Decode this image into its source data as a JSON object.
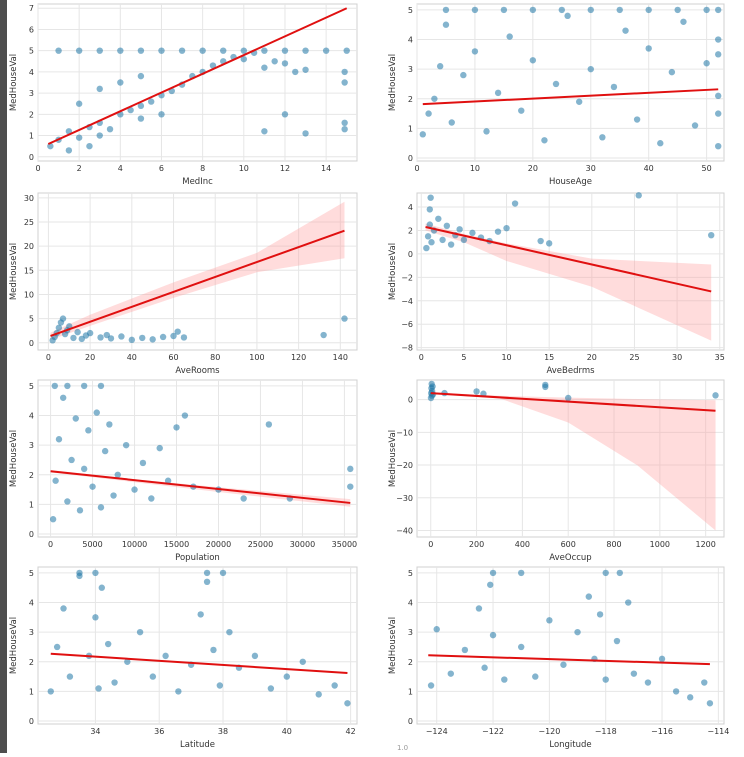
{
  "colors": {
    "points": "#1f77a5",
    "fit": "#e01010",
    "ci": "#ff9a9a",
    "grid": "#e6e6e6"
  },
  "footer_partial_text": "1.0",
  "chart_data": [
    {
      "type": "scatter",
      "xlabel": "MedInc",
      "ylabel": "MedHouseVal",
      "xlim": [
        0,
        15.5
      ],
      "ylim": [
        -0.2,
        7.2
      ],
      "xticks": [
        0,
        2,
        4,
        6,
        8,
        10,
        12,
        14
      ],
      "yticks": [
        0,
        1,
        2,
        3,
        4,
        5,
        6,
        7
      ],
      "regression": {
        "x": [
          0.5,
          15
        ],
        "y": [
          0.6,
          7.0
        ]
      },
      "ci": null,
      "points": [
        [
          0.6,
          0.5
        ],
        [
          1,
          0.8
        ],
        [
          1.5,
          1.2
        ],
        [
          2,
          0.9
        ],
        [
          2.5,
          1.4
        ],
        [
          3,
          1.6
        ],
        [
          3.5,
          1.3
        ],
        [
          4,
          2.0
        ],
        [
          4.5,
          2.2
        ],
        [
          5,
          2.4
        ],
        [
          5.5,
          2.6
        ],
        [
          6,
          2.9
        ],
        [
          6.5,
          3.1
        ],
        [
          7,
          3.4
        ],
        [
          7.5,
          3.8
        ],
        [
          8,
          4.0
        ],
        [
          8.5,
          4.3
        ],
        [
          9,
          4.5
        ],
        [
          9.5,
          4.7
        ],
        [
          10,
          4.6
        ],
        [
          10.5,
          4.9
        ],
        [
          11,
          4.2
        ],
        [
          11.5,
          4.5
        ],
        [
          12,
          4.4
        ],
        [
          12.5,
          4.0
        ],
        [
          13,
          4.1
        ],
        [
          1,
          5
        ],
        [
          2,
          5
        ],
        [
          3,
          5
        ],
        [
          4,
          5
        ],
        [
          5,
          5
        ],
        [
          6,
          5
        ],
        [
          7,
          5
        ],
        [
          8,
          5
        ],
        [
          9,
          5
        ],
        [
          10,
          5
        ],
        [
          11,
          5
        ],
        [
          12,
          5
        ],
        [
          13,
          5
        ],
        [
          14,
          5
        ],
        [
          15,
          5
        ],
        [
          2,
          2.5
        ],
        [
          3,
          3.2
        ],
        [
          4,
          3.5
        ],
        [
          5,
          3.8
        ],
        [
          3,
          1.0
        ],
        [
          5,
          1.8
        ],
        [
          6,
          2.0
        ],
        [
          11,
          1.2
        ],
        [
          12,
          2.0
        ],
        [
          13,
          1.1
        ],
        [
          14.9,
          1.3
        ],
        [
          14.9,
          1.6
        ],
        [
          14.9,
          3.5
        ],
        [
          14.9,
          4.0
        ],
        [
          1.5,
          0.3
        ],
        [
          2.5,
          0.5
        ]
      ]
    },
    {
      "type": "scatter",
      "xlabel": "HouseAge",
      "ylabel": "MedHouseVal",
      "xlim": [
        0,
        53
      ],
      "ylim": [
        -0.1,
        5.2
      ],
      "xticks": [
        0,
        10,
        20,
        30,
        40,
        50
      ],
      "yticks": [
        0,
        1,
        2,
        3,
        4,
        5
      ],
      "regression": {
        "x": [
          1,
          52
        ],
        "y": [
          1.82,
          2.32
        ]
      },
      "ci": null,
      "points": [
        [
          1,
          0.8
        ],
        [
          2,
          1.5
        ],
        [
          3,
          2.0
        ],
        [
          4,
          3.1
        ],
        [
          5,
          4.5
        ],
        [
          6,
          1.2
        ],
        [
          8,
          2.8
        ],
        [
          10,
          3.6
        ],
        [
          12,
          0.9
        ],
        [
          14,
          2.2
        ],
        [
          16,
          4.1
        ],
        [
          18,
          1.6
        ],
        [
          20,
          3.3
        ],
        [
          22,
          0.6
        ],
        [
          24,
          2.5
        ],
        [
          26,
          4.8
        ],
        [
          28,
          1.9
        ],
        [
          30,
          3.0
        ],
        [
          32,
          0.7
        ],
        [
          34,
          2.4
        ],
        [
          36,
          4.3
        ],
        [
          38,
          1.3
        ],
        [
          40,
          3.7
        ],
        [
          42,
          0.5
        ],
        [
          44,
          2.9
        ],
        [
          46,
          4.6
        ],
        [
          48,
          1.1
        ],
        [
          50,
          3.2
        ],
        [
          52,
          0.4
        ],
        [
          52,
          2.1
        ],
        [
          52,
          4.0
        ],
        [
          5,
          5
        ],
        [
          10,
          5
        ],
        [
          15,
          5
        ],
        [
          20,
          5
        ],
        [
          25,
          5
        ],
        [
          30,
          5
        ],
        [
          35,
          5
        ],
        [
          40,
          5
        ],
        [
          45,
          5
        ],
        [
          50,
          5
        ],
        [
          52,
          5
        ],
        [
          52,
          1.5
        ],
        [
          52,
          3.5
        ]
      ]
    },
    {
      "type": "scatter",
      "xlabel": "AveRooms",
      "ylabel": "MedHouseVal",
      "xlim": [
        -5,
        148
      ],
      "ylim": [
        -1.5,
        31
      ],
      "xticks": [
        0,
        20,
        40,
        60,
        80,
        100,
        120,
        140
      ],
      "yticks": [
        0,
        5,
        10,
        15,
        20,
        25,
        30
      ],
      "regression": {
        "x": [
          1,
          142
        ],
        "y": [
          1.4,
          23.2
        ]
      },
      "ci": {
        "x": [
          1,
          20,
          60,
          100,
          142
        ],
        "lower": [
          0.6,
          3.5,
          9.3,
          14.6,
          17.5
        ],
        "upper": [
          2.1,
          5.8,
          12.5,
          18.6,
          29.2
        ]
      },
      "points": [
        [
          2,
          0.5
        ],
        [
          3,
          1.2
        ],
        [
          4,
          2.0
        ],
        [
          5,
          3.1
        ],
        [
          6,
          4.2
        ],
        [
          7,
          5.0
        ],
        [
          8,
          1.8
        ],
        [
          9,
          2.6
        ],
        [
          10,
          3.4
        ],
        [
          12,
          1.0
        ],
        [
          14,
          2.2
        ],
        [
          16,
          0.8
        ],
        [
          18,
          1.5
        ],
        [
          20,
          2.0
        ],
        [
          25,
          1.1
        ],
        [
          28,
          1.6
        ],
        [
          30,
          0.9
        ],
        [
          35,
          1.3
        ],
        [
          40,
          0.6
        ],
        [
          45,
          1.0
        ],
        [
          50,
          0.7
        ],
        [
          55,
          1.2
        ],
        [
          60,
          1.4
        ],
        [
          62,
          2.3
        ],
        [
          65,
          1.1
        ],
        [
          132,
          1.6
        ],
        [
          142,
          5.0
        ]
      ]
    },
    {
      "type": "scatter",
      "xlabel": "AveBedrms",
      "ylabel": "MedHouseVal",
      "xlim": [
        -0.5,
        35.5
      ],
      "ylim": [
        -8.2,
        5.2
      ],
      "xticks": [
        0,
        5,
        10,
        15,
        20,
        25,
        30,
        35
      ],
      "yticks": [
        -8,
        -6,
        -4,
        -2,
        0,
        2,
        4
      ],
      "regression": {
        "x": [
          0.5,
          34
        ],
        "y": [
          2.3,
          -3.2
        ]
      },
      "ci": {
        "x": [
          0.5,
          5,
          10,
          20,
          34
        ],
        "lower": [
          2.0,
          1.0,
          -0.6,
          -2.8,
          -7.4
        ],
        "upper": [
          2.6,
          1.7,
          0.9,
          -0.4,
          -0.9
        ]
      },
      "points": [
        [
          0.6,
          0.5
        ],
        [
          0.8,
          1.5
        ],
        [
          1,
          2.5
        ],
        [
          1,
          3.8
        ],
        [
          1.1,
          4.8
        ],
        [
          1.2,
          1.0
        ],
        [
          1.5,
          2.0
        ],
        [
          2,
          3.0
        ],
        [
          2.5,
          1.2
        ],
        [
          3,
          2.4
        ],
        [
          3.5,
          0.8
        ],
        [
          4,
          1.6
        ],
        [
          4.5,
          2.1
        ],
        [
          5,
          1.2
        ],
        [
          6,
          1.8
        ],
        [
          7,
          1.4
        ],
        [
          8,
          1.1
        ],
        [
          9,
          1.9
        ],
        [
          10,
          2.2
        ],
        [
          11,
          4.3
        ],
        [
          14,
          1.1
        ],
        [
          15,
          0.9
        ],
        [
          25.5,
          5.0
        ],
        [
          34,
          1.6
        ]
      ]
    },
    {
      "type": "scatter",
      "xlabel": "Population",
      "ylabel": "MedHouseVal",
      "xlim": [
        -1500,
        36500
      ],
      "ylim": [
        -0.1,
        5.2
      ],
      "xticks": [
        0,
        5000,
        10000,
        15000,
        20000,
        25000,
        30000,
        35000
      ],
      "yticks": [
        0,
        1,
        2,
        3,
        4,
        5
      ],
      "regression": {
        "x": [
          0,
          35700
        ],
        "y": [
          2.12,
          1.05
        ]
      },
      "ci": {
        "x": [
          0,
          10000,
          20000,
          35700
        ],
        "lower": [
          2.08,
          1.75,
          1.42,
          0.92
        ],
        "upper": [
          2.16,
          1.85,
          1.58,
          1.18
        ]
      },
      "points": [
        [
          300,
          0.5
        ],
        [
          600,
          1.8
        ],
        [
          1000,
          3.2
        ],
        [
          1500,
          4.6
        ],
        [
          2000,
          1.1
        ],
        [
          2500,
          2.5
        ],
        [
          3000,
          3.9
        ],
        [
          3500,
          0.8
        ],
        [
          4000,
          2.2
        ],
        [
          4500,
          3.5
        ],
        [
          5000,
          1.6
        ],
        [
          5500,
          4.1
        ],
        [
          6000,
          0.9
        ],
        [
          6500,
          2.8
        ],
        [
          7000,
          3.7
        ],
        [
          7500,
          1.3
        ],
        [
          8000,
          2.0
        ],
        [
          9000,
          3.0
        ],
        [
          10000,
          1.5
        ],
        [
          11000,
          2.4
        ],
        [
          12000,
          1.2
        ],
        [
          13000,
          2.9
        ],
        [
          14000,
          1.8
        ],
        [
          15000,
          3.6
        ],
        [
          16000,
          4.0
        ],
        [
          17000,
          1.6
        ],
        [
          20000,
          1.5
        ],
        [
          23000,
          1.2
        ],
        [
          26000,
          3.7
        ],
        [
          28500,
          1.2
        ],
        [
          35700,
          1.6
        ],
        [
          35700,
          2.2
        ],
        [
          500,
          5
        ],
        [
          2000,
          5
        ],
        [
          4000,
          5
        ],
        [
          6000,
          5
        ]
      ]
    },
    {
      "type": "scatter",
      "xlabel": "AveOccup",
      "ylabel": "MedHouseVal",
      "xlim": [
        -60,
        1280
      ],
      "ylim": [
        -42,
        6
      ],
      "xticks": [
        0,
        200,
        400,
        600,
        800,
        1000,
        1200
      ],
      "yticks": [
        -40,
        -30,
        -20,
        -10,
        0
      ],
      "regression": {
        "x": [
          0,
          1243
        ],
        "y": [
          2.0,
          -3.4
        ]
      },
      "ci": {
        "x": [
          0,
          300,
          600,
          900,
          1243
        ],
        "lower": [
          1.8,
          0.4,
          -7.0,
          -20.0,
          -40.0
        ],
        "upper": [
          2.2,
          1.2,
          0.6,
          0.2,
          -0.2
        ]
      },
      "points": [
        [
          1,
          0.5
        ],
        [
          2,
          2
        ],
        [
          3,
          3.5
        ],
        [
          4,
          4.8
        ],
        [
          5,
          1.2
        ],
        [
          6,
          2.6
        ],
        [
          8,
          4.0
        ],
        [
          10,
          1.6
        ],
        [
          60,
          2.0
        ],
        [
          200,
          2.5
        ],
        [
          230,
          1.8
        ],
        [
          500,
          4.5
        ],
        [
          500,
          3.9
        ],
        [
          600,
          0.5
        ],
        [
          1243,
          1.3
        ]
      ]
    },
    {
      "type": "scatter",
      "xlabel": "Latitude",
      "ylabel": "MedHouseVal",
      "xlim": [
        32.2,
        42.2
      ],
      "ylim": [
        -0.1,
        5.2
      ],
      "xticks": [
        34,
        36,
        38,
        40,
        42
      ],
      "yticks": [
        0,
        1,
        2,
        3,
        4,
        5
      ],
      "regression": {
        "x": [
          32.6,
          41.9
        ],
        "y": [
          2.27,
          1.62
        ]
      },
      "ci": null,
      "points": [
        [
          32.6,
          1.0
        ],
        [
          32.8,
          2.5
        ],
        [
          33,
          3.8
        ],
        [
          33.2,
          1.5
        ],
        [
          33.5,
          4.9
        ],
        [
          33.8,
          2.2
        ],
        [
          34,
          3.5
        ],
        [
          34.1,
          1.1
        ],
        [
          34.2,
          4.5
        ],
        [
          34.4,
          2.6
        ],
        [
          34.6,
          1.3
        ],
        [
          35,
          2.0
        ],
        [
          35.4,
          3.0
        ],
        [
          35.8,
          1.5
        ],
        [
          36.2,
          2.2
        ],
        [
          36.6,
          1.0
        ],
        [
          37,
          1.9
        ],
        [
          37.3,
          3.6
        ],
        [
          37.5,
          4.7
        ],
        [
          37.7,
          2.4
        ],
        [
          37.9,
          1.2
        ],
        [
          38.2,
          3.0
        ],
        [
          38.5,
          1.8
        ],
        [
          39,
          2.2
        ],
        [
          39.5,
          1.1
        ],
        [
          40,
          1.5
        ],
        [
          40.5,
          2.0
        ],
        [
          41,
          0.9
        ],
        [
          41.5,
          1.2
        ],
        [
          41.9,
          0.6
        ],
        [
          33.5,
          5
        ],
        [
          34,
          5
        ],
        [
          37.5,
          5
        ],
        [
          38,
          5
        ]
      ]
    },
    {
      "type": "scatter",
      "xlabel": "Longitude",
      "ylabel": "MedHouseVal",
      "xlim": [
        -124.7,
        -113.8
      ],
      "ylim": [
        -0.1,
        5.2
      ],
      "xticks": [
        -124,
        -122,
        -120,
        -118,
        -116,
        -114
      ],
      "yticks": [
        0,
        1,
        2,
        3,
        4,
        5
      ],
      "regression": {
        "x": [
          -124.3,
          -114.3
        ],
        "y": [
          2.22,
          1.92
        ]
      },
      "ci": null,
      "points": [
        [
          -124.2,
          1.2
        ],
        [
          -124,
          3.1
        ],
        [
          -123.5,
          1.6
        ],
        [
          -123,
          2.4
        ],
        [
          -122.5,
          3.8
        ],
        [
          -122.3,
          1.8
        ],
        [
          -122.1,
          4.6
        ],
        [
          -122,
          2.9
        ],
        [
          -121.6,
          1.4
        ],
        [
          -121,
          2.5
        ],
        [
          -120.5,
          1.5
        ],
        [
          -120,
          3.4
        ],
        [
          -119.5,
          1.9
        ],
        [
          -119,
          3.0
        ],
        [
          -118.6,
          4.2
        ],
        [
          -118.4,
          2.1
        ],
        [
          -118.2,
          3.6
        ],
        [
          -118,
          1.4
        ],
        [
          -117.6,
          2.7
        ],
        [
          -117.2,
          4.0
        ],
        [
          -117,
          1.6
        ],
        [
          -116.5,
          1.3
        ],
        [
          -116,
          2.1
        ],
        [
          -115.5,
          1.0
        ],
        [
          -115,
          0.8
        ],
        [
          -114.5,
          1.3
        ],
        [
          -114.3,
          0.6
        ],
        [
          -122,
          5
        ],
        [
          -121,
          5
        ],
        [
          -118,
          5
        ],
        [
          -117.5,
          5
        ]
      ]
    }
  ]
}
